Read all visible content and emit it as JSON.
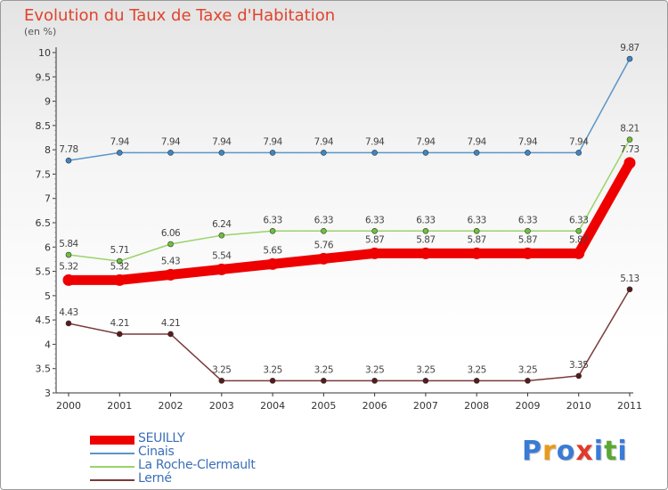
{
  "title": "Evolution du Taux de Taxe d'Habitation",
  "subtitle": "(en %)",
  "logo": {
    "text": "Proxiti",
    "letter_colors": [
      "#3a7bd5",
      "#e89a1c",
      "#3a7bd5",
      "#e03a2c",
      "#3a7bd5",
      "#5aa832",
      "#3a7bd5"
    ]
  },
  "chart_data": {
    "type": "line",
    "categories": [
      "2000",
      "2001",
      "2002",
      "2003",
      "2004",
      "2005",
      "2006",
      "2007",
      "2008",
      "2009",
      "2010",
      "2011"
    ],
    "ylim": [
      3,
      10
    ],
    "yticks": [
      "3",
      "3.5",
      "4",
      "4.5",
      "5",
      "5.5",
      "6",
      "6.5",
      "7",
      "7.5",
      "8",
      "8.5",
      "9",
      "9.5",
      "10"
    ],
    "grid": false,
    "legend_position": "bottom-left",
    "series": [
      {
        "name": "Cinais",
        "color": "#5b95c8",
        "marker_color": "#3d86c6",
        "thick": false,
        "values": [
          7.78,
          7.94,
          7.94,
          7.94,
          7.94,
          7.94,
          7.94,
          7.94,
          7.94,
          7.94,
          7.94,
          9.87
        ],
        "labels": [
          "7.78",
          "7.94",
          "7.94",
          "7.94",
          "7.94",
          "7.94",
          "7.94",
          "7.94",
          "7.94",
          "7.94",
          "7.94",
          "9.87"
        ]
      },
      {
        "name": "La Roche-Clermault",
        "color": "#9ad36a",
        "marker_color": "#6cc23a",
        "thick": false,
        "values": [
          5.84,
          5.71,
          6.06,
          6.24,
          6.33,
          6.33,
          6.33,
          6.33,
          6.33,
          6.33,
          6.33,
          8.21
        ],
        "labels": [
          "5.84",
          "5.71",
          "6.06",
          "6.24",
          "6.33",
          "6.33",
          "6.33",
          "6.33",
          "6.33",
          "6.33",
          "6.33",
          "8.21"
        ]
      },
      {
        "name": "Lerné",
        "color": "#7a3a3a",
        "marker_color": "#5a1a1a",
        "thick": false,
        "values": [
          4.43,
          4.21,
          4.21,
          3.25,
          3.25,
          3.25,
          3.25,
          3.25,
          3.25,
          3.25,
          3.35,
          5.13
        ],
        "labels": [
          "4.43",
          "4.21",
          "4.21",
          "3.25",
          "3.25",
          "3.25",
          "3.25",
          "3.25",
          "3.25",
          "3.25",
          "3.35",
          "5.13"
        ]
      },
      {
        "name": "SEUILLY",
        "color": "#ee0000",
        "marker_color": "#ee0000",
        "thick": true,
        "values": [
          5.32,
          5.32,
          5.43,
          5.54,
          5.65,
          5.76,
          5.87,
          5.87,
          5.87,
          5.87,
          5.87,
          7.73
        ],
        "labels": [
          "5.32",
          "5.32",
          "5.43",
          "5.54",
          "5.65",
          "5.76",
          "5.87",
          "5.87",
          "5.87",
          "5.87",
          "5.87",
          "7.73"
        ]
      }
    ],
    "legend": [
      "SEUILLY",
      "Cinais",
      "La Roche-Clermault",
      "Lerné"
    ]
  }
}
